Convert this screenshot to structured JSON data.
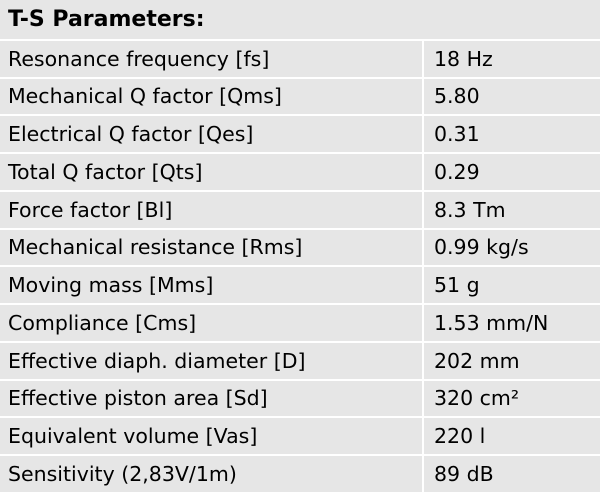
{
  "table": {
    "title": "T-S Parameters:",
    "rows": [
      {
        "parameter": "Resonance frequency [fs]",
        "value": "18 Hz"
      },
      {
        "parameter": "Mechanical Q factor [Qms]",
        "value": "5.80"
      },
      {
        "parameter": "Electrical Q factor [Qes]",
        "value": "0.31"
      },
      {
        "parameter": "Total Q factor [Qts]",
        "value": "0.29"
      },
      {
        "parameter": "Force factor [Bl]",
        "value": "8.3 Tm"
      },
      {
        "parameter": "Mechanical resistance [Rms]",
        "value": "0.99 kg/s"
      },
      {
        "parameter": "Moving mass [Mms]",
        "value": "51 g"
      },
      {
        "parameter": "Compliance [Cms]",
        "value": "1.53 mm/N"
      },
      {
        "parameter": "Effective diaph. diameter [D]",
        "value": "202 mm"
      },
      {
        "parameter": "Effective piston area [Sd]",
        "value": "320 cm²"
      },
      {
        "parameter": "Equivalent volume [Vas]",
        "value": "220 l"
      },
      {
        "parameter": "Sensitivity (2,83V/1m)",
        "value": "89 dB"
      }
    ]
  },
  "colors": {
    "cell_background": "#e6e6e6",
    "grid_lines": "#ffffff",
    "text": "#000000"
  }
}
